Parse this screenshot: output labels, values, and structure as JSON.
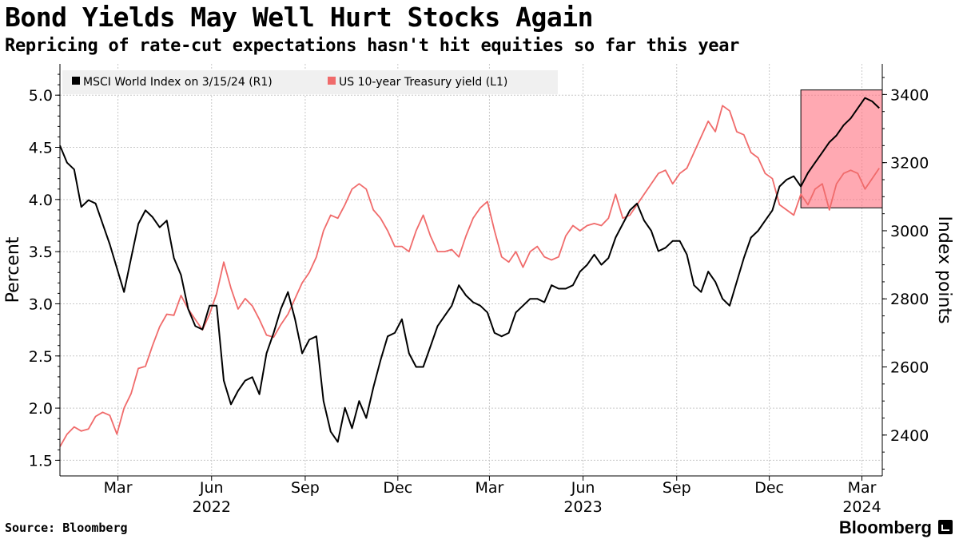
{
  "header": {
    "title": "Bond Yields May Well Hurt Stocks Again",
    "subtitle": "Repricing of rate-cut expectations hasn't hit equities so far this year"
  },
  "footer": {
    "source": "Source: Bloomberg",
    "brand": "Bloomberg"
  },
  "chart_data": {
    "type": "line",
    "ylabel_left": "Percent",
    "ylabel_right": "Index points",
    "ylim_left": [
      1.35,
      5.3
    ],
    "ylim_right": [
      2280,
      3490
    ],
    "yticks_left": [
      "1.5",
      "2.0",
      "2.5",
      "3.0",
      "3.5",
      "4.0",
      "4.5",
      "5.0"
    ],
    "yticks_right": [
      "2400",
      "2600",
      "2800",
      "3000",
      "3200",
      "3400"
    ],
    "xlim": [
      "2022-01-03",
      "2024-03-21"
    ],
    "xticks": [
      {
        "date": "2022-03-01",
        "label": "Mar"
      },
      {
        "date": "2022-06-01",
        "label": "Jun"
      },
      {
        "date": "2022-09-01",
        "label": "Sep"
      },
      {
        "date": "2022-12-01",
        "label": "Dec"
      },
      {
        "date": "2023-03-01",
        "label": "Mar"
      },
      {
        "date": "2023-06-01",
        "label": "Jun"
      },
      {
        "date": "2023-09-01",
        "label": "Sep"
      },
      {
        "date": "2023-12-01",
        "label": "Dec"
      },
      {
        "date": "2024-03-01",
        "label": "Mar"
      }
    ],
    "year_labels": [
      {
        "date": "2022-06-01",
        "label": "2022"
      },
      {
        "date": "2023-06-01",
        "label": "2023"
      },
      {
        "date": "2024-03-01",
        "label": "2024"
      }
    ],
    "legend_position": "top-left",
    "grid": true,
    "highlight": {
      "from": "2024-01-01",
      "to": "2024-03-21",
      "color": "#ff6f7f"
    },
    "series": [
      {
        "name": "MSCI World Index on 3/15/24 (R1)",
        "axis": "right",
        "color": "#000000",
        "points": [
          [
            "2022-01-03",
            3250
          ],
          [
            "2022-01-10",
            3200
          ],
          [
            "2022-01-17",
            3180
          ],
          [
            "2022-01-24",
            3070
          ],
          [
            "2022-01-31",
            3090
          ],
          [
            "2022-02-07",
            3080
          ],
          [
            "2022-02-14",
            3020
          ],
          [
            "2022-02-21",
            2960
          ],
          [
            "2022-03-07",
            2820
          ],
          [
            "2022-03-14",
            2920
          ],
          [
            "2022-03-21",
            3020
          ],
          [
            "2022-03-28",
            3060
          ],
          [
            "2022-04-04",
            3040
          ],
          [
            "2022-04-11",
            3010
          ],
          [
            "2022-04-18",
            3030
          ],
          [
            "2022-04-25",
            2920
          ],
          [
            "2022-05-02",
            2870
          ],
          [
            "2022-05-09",
            2770
          ],
          [
            "2022-05-16",
            2720
          ],
          [
            "2022-05-23",
            2710
          ],
          [
            "2022-05-30",
            2780
          ],
          [
            "2022-06-06",
            2780
          ],
          [
            "2022-06-13",
            2560
          ],
          [
            "2022-06-20",
            2490
          ],
          [
            "2022-06-27",
            2530
          ],
          [
            "2022-07-04",
            2560
          ],
          [
            "2022-07-11",
            2570
          ],
          [
            "2022-07-18",
            2520
          ],
          [
            "2022-07-25",
            2640
          ],
          [
            "2022-08-01",
            2700
          ],
          [
            "2022-08-08",
            2770
          ],
          [
            "2022-08-15",
            2820
          ],
          [
            "2022-08-22",
            2740
          ],
          [
            "2022-08-29",
            2640
          ],
          [
            "2022-09-05",
            2680
          ],
          [
            "2022-09-12",
            2690
          ],
          [
            "2022-09-19",
            2500
          ],
          [
            "2022-09-26",
            2410
          ],
          [
            "2022-10-03",
            2380
          ],
          [
            "2022-10-10",
            2480
          ],
          [
            "2022-10-17",
            2420
          ],
          [
            "2022-10-24",
            2500
          ],
          [
            "2022-10-31",
            2450
          ],
          [
            "2022-11-07",
            2540
          ],
          [
            "2022-11-14",
            2620
          ],
          [
            "2022-11-21",
            2690
          ],
          [
            "2022-11-28",
            2700
          ],
          [
            "2022-12-05",
            2740
          ],
          [
            "2022-12-12",
            2640
          ],
          [
            "2022-12-19",
            2600
          ],
          [
            "2022-12-26",
            2600
          ],
          [
            "2023-01-02",
            2660
          ],
          [
            "2023-01-09",
            2720
          ],
          [
            "2023-01-16",
            2750
          ],
          [
            "2023-01-23",
            2780
          ],
          [
            "2023-01-30",
            2840
          ],
          [
            "2023-02-06",
            2810
          ],
          [
            "2023-02-13",
            2790
          ],
          [
            "2023-02-20",
            2780
          ],
          [
            "2023-02-27",
            2760
          ],
          [
            "2023-03-06",
            2700
          ],
          [
            "2023-03-13",
            2690
          ],
          [
            "2023-03-20",
            2700
          ],
          [
            "2023-03-27",
            2760
          ],
          [
            "2023-04-03",
            2780
          ],
          [
            "2023-04-10",
            2800
          ],
          [
            "2023-04-17",
            2800
          ],
          [
            "2023-04-24",
            2790
          ],
          [
            "2023-05-01",
            2840
          ],
          [
            "2023-05-08",
            2830
          ],
          [
            "2023-05-15",
            2830
          ],
          [
            "2023-05-22",
            2840
          ],
          [
            "2023-05-29",
            2880
          ],
          [
            "2023-06-05",
            2900
          ],
          [
            "2023-06-12",
            2930
          ],
          [
            "2023-06-19",
            2900
          ],
          [
            "2023-06-26",
            2920
          ],
          [
            "2023-07-03",
            2980
          ],
          [
            "2023-07-10",
            3020
          ],
          [
            "2023-07-17",
            3060
          ],
          [
            "2023-07-24",
            3080
          ],
          [
            "2023-07-31",
            3030
          ],
          [
            "2023-08-07",
            3000
          ],
          [
            "2023-08-14",
            2940
          ],
          [
            "2023-08-21",
            2950
          ],
          [
            "2023-08-28",
            2970
          ],
          [
            "2023-09-04",
            2970
          ],
          [
            "2023-09-11",
            2930
          ],
          [
            "2023-09-18",
            2840
          ],
          [
            "2023-09-25",
            2820
          ],
          [
            "2023-10-02",
            2880
          ],
          [
            "2023-10-09",
            2850
          ],
          [
            "2023-10-16",
            2800
          ],
          [
            "2023-10-23",
            2780
          ],
          [
            "2023-10-30",
            2850
          ],
          [
            "2023-11-06",
            2920
          ],
          [
            "2023-11-13",
            2980
          ],
          [
            "2023-11-20",
            3000
          ],
          [
            "2023-11-27",
            3030
          ],
          [
            "2023-12-04",
            3060
          ],
          [
            "2023-12-11",
            3130
          ],
          [
            "2023-12-18",
            3150
          ],
          [
            "2023-12-25",
            3160
          ],
          [
            "2024-01-01",
            3130
          ],
          [
            "2024-01-08",
            3170
          ],
          [
            "2024-01-15",
            3200
          ],
          [
            "2024-01-22",
            3230
          ],
          [
            "2024-01-29",
            3260
          ],
          [
            "2024-02-05",
            3280
          ],
          [
            "2024-02-12",
            3310
          ],
          [
            "2024-02-19",
            3330
          ],
          [
            "2024-02-26",
            3360
          ],
          [
            "2024-03-04",
            3390
          ],
          [
            "2024-03-11",
            3380
          ],
          [
            "2024-03-18",
            3360
          ]
        ]
      },
      {
        "name": "US 10-year Treasury yield (L1)",
        "axis": "left",
        "color": "#f06b6b",
        "points": [
          [
            "2022-01-03",
            1.63
          ],
          [
            "2022-01-10",
            1.75
          ],
          [
            "2022-01-17",
            1.82
          ],
          [
            "2022-01-24",
            1.78
          ],
          [
            "2022-01-31",
            1.8
          ],
          [
            "2022-02-07",
            1.92
          ],
          [
            "2022-02-14",
            1.96
          ],
          [
            "2022-02-21",
            1.93
          ],
          [
            "2022-02-28",
            1.75
          ],
          [
            "2022-03-07",
            2.0
          ],
          [
            "2022-03-14",
            2.14
          ],
          [
            "2022-03-21",
            2.38
          ],
          [
            "2022-03-28",
            2.4
          ],
          [
            "2022-04-04",
            2.6
          ],
          [
            "2022-04-11",
            2.78
          ],
          [
            "2022-04-18",
            2.9
          ],
          [
            "2022-04-25",
            2.89
          ],
          [
            "2022-05-02",
            3.08
          ],
          [
            "2022-05-09",
            2.95
          ],
          [
            "2022-05-16",
            2.85
          ],
          [
            "2022-05-23",
            2.75
          ],
          [
            "2022-05-30",
            2.9
          ],
          [
            "2022-06-06",
            3.1
          ],
          [
            "2022-06-13",
            3.4
          ],
          [
            "2022-06-20",
            3.15
          ],
          [
            "2022-06-27",
            2.95
          ],
          [
            "2022-07-04",
            3.05
          ],
          [
            "2022-07-11",
            2.98
          ],
          [
            "2022-07-18",
            2.85
          ],
          [
            "2022-07-25",
            2.7
          ],
          [
            "2022-08-01",
            2.68
          ],
          [
            "2022-08-08",
            2.8
          ],
          [
            "2022-08-15",
            2.9
          ],
          [
            "2022-08-22",
            3.05
          ],
          [
            "2022-08-29",
            3.2
          ],
          [
            "2022-09-05",
            3.3
          ],
          [
            "2022-09-12",
            3.45
          ],
          [
            "2022-09-19",
            3.7
          ],
          [
            "2022-09-26",
            3.85
          ],
          [
            "2022-10-03",
            3.82
          ],
          [
            "2022-10-10",
            3.95
          ],
          [
            "2022-10-17",
            4.1
          ],
          [
            "2022-10-24",
            4.15
          ],
          [
            "2022-10-31",
            4.1
          ],
          [
            "2022-11-07",
            3.9
          ],
          [
            "2022-11-14",
            3.82
          ],
          [
            "2022-11-21",
            3.7
          ],
          [
            "2022-11-28",
            3.55
          ],
          [
            "2022-12-05",
            3.55
          ],
          [
            "2022-12-12",
            3.5
          ],
          [
            "2022-12-19",
            3.7
          ],
          [
            "2022-12-26",
            3.85
          ],
          [
            "2023-01-02",
            3.65
          ],
          [
            "2023-01-09",
            3.5
          ],
          [
            "2023-01-16",
            3.5
          ],
          [
            "2023-01-23",
            3.52
          ],
          [
            "2023-01-30",
            3.45
          ],
          [
            "2023-02-06",
            3.65
          ],
          [
            "2023-02-13",
            3.82
          ],
          [
            "2023-02-20",
            3.92
          ],
          [
            "2023-02-27",
            3.98
          ],
          [
            "2023-03-06",
            3.7
          ],
          [
            "2023-03-13",
            3.45
          ],
          [
            "2023-03-20",
            3.4
          ],
          [
            "2023-03-27",
            3.5
          ],
          [
            "2023-04-03",
            3.35
          ],
          [
            "2023-04-10",
            3.5
          ],
          [
            "2023-04-17",
            3.55
          ],
          [
            "2023-04-24",
            3.45
          ],
          [
            "2023-05-01",
            3.42
          ],
          [
            "2023-05-08",
            3.45
          ],
          [
            "2023-05-15",
            3.65
          ],
          [
            "2023-05-22",
            3.75
          ],
          [
            "2023-05-29",
            3.7
          ],
          [
            "2023-06-05",
            3.75
          ],
          [
            "2023-06-12",
            3.77
          ],
          [
            "2023-06-19",
            3.75
          ],
          [
            "2023-06-26",
            3.82
          ],
          [
            "2023-07-03",
            4.05
          ],
          [
            "2023-07-10",
            3.82
          ],
          [
            "2023-07-17",
            3.85
          ],
          [
            "2023-07-24",
            3.95
          ],
          [
            "2023-07-31",
            4.05
          ],
          [
            "2023-08-07",
            4.15
          ],
          [
            "2023-08-14",
            4.25
          ],
          [
            "2023-08-21",
            4.28
          ],
          [
            "2023-08-28",
            4.15
          ],
          [
            "2023-09-04",
            4.25
          ],
          [
            "2023-09-11",
            4.3
          ],
          [
            "2023-09-18",
            4.45
          ],
          [
            "2023-09-25",
            4.6
          ],
          [
            "2023-10-02",
            4.75
          ],
          [
            "2023-10-09",
            4.65
          ],
          [
            "2023-10-16",
            4.9
          ],
          [
            "2023-10-23",
            4.85
          ],
          [
            "2023-10-30",
            4.65
          ],
          [
            "2023-11-06",
            4.62
          ],
          [
            "2023-11-13",
            4.45
          ],
          [
            "2023-11-20",
            4.4
          ],
          [
            "2023-11-27",
            4.25
          ],
          [
            "2023-12-04",
            4.2
          ],
          [
            "2023-12-11",
            3.95
          ],
          [
            "2023-12-18",
            3.9
          ],
          [
            "2023-12-25",
            3.85
          ],
          [
            "2024-01-01",
            4.05
          ],
          [
            "2024-01-08",
            3.95
          ],
          [
            "2024-01-15",
            4.1
          ],
          [
            "2024-01-22",
            4.15
          ],
          [
            "2024-01-29",
            3.9
          ],
          [
            "2024-02-05",
            4.15
          ],
          [
            "2024-02-12",
            4.25
          ],
          [
            "2024-02-19",
            4.28
          ],
          [
            "2024-02-26",
            4.25
          ],
          [
            "2024-03-04",
            4.1
          ],
          [
            "2024-03-11",
            4.2
          ],
          [
            "2024-03-18",
            4.3
          ]
        ]
      }
    ]
  }
}
